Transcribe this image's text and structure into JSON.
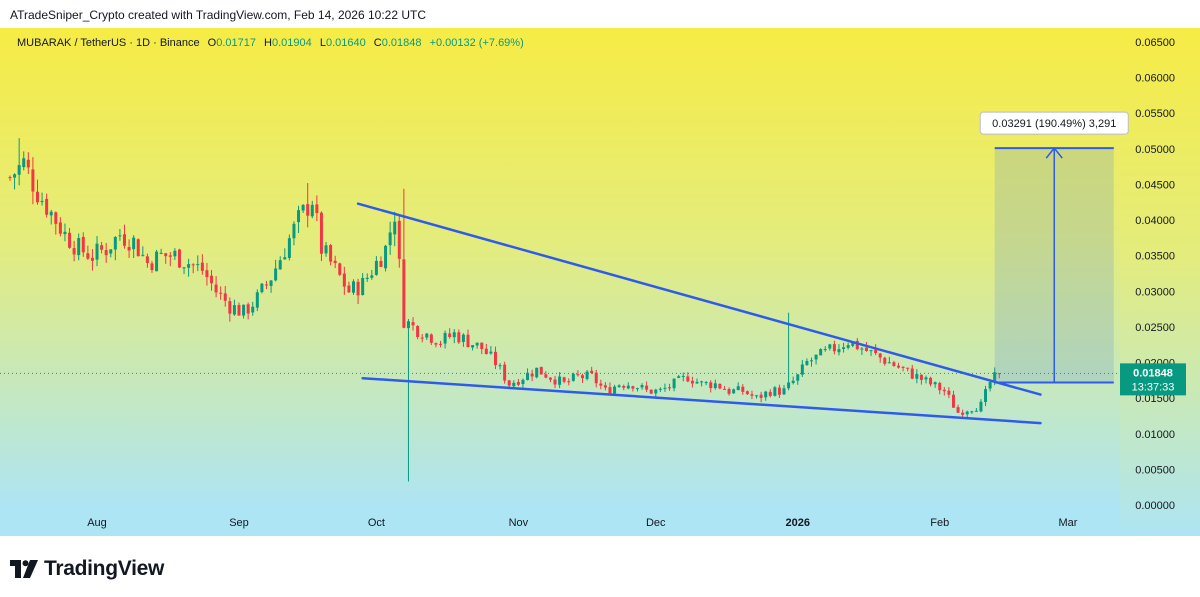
{
  "credit": "ATradeSniper_Crypto created with TradingView.com, Feb 14, 2026 10:22 UTC",
  "legend": {
    "symbol": "MUBARAK / TetherUS · 1D · Binance",
    "open_label": "O",
    "open": "0.01717",
    "high_label": "H",
    "high": "0.01904",
    "low_label": "L",
    "low": "0.01640",
    "close_label": "C",
    "close": "0.01848",
    "change": "+0.00132 (+7.69%)"
  },
  "colors": {
    "up": "#089981",
    "down": "#f23645",
    "pattern": "#2f5bea",
    "bg_top": "#f7ec45",
    "bg_bottom": "#aee5f4",
    "price_tag": "#089981"
  },
  "footer": {
    "brand": "TradingView",
    "logo_icon": "tradingview-logo-icon"
  },
  "chart_data": {
    "type": "candlestick",
    "title": "MUBARAK / TetherUS · 1D · Binance",
    "ylim": [
      0,
      0.066
    ],
    "y_ticks": [
      "0.00000",
      "0.00500",
      "0.01000",
      "0.01500",
      "0.02000",
      "0.02500",
      "0.03000",
      "0.03500",
      "0.04000",
      "0.04500",
      "0.05000",
      "0.05500",
      "0.06000",
      "0.06500"
    ],
    "y_tick_values": [
      0,
      0.005,
      0.01,
      0.015,
      0.02,
      0.025,
      0.03,
      0.035,
      0.04,
      0.045,
      0.05,
      0.055,
      0.06,
      0.065
    ],
    "x_labels": [
      {
        "label": "Aug",
        "day": 19
      },
      {
        "label": "Sep",
        "day": 50
      },
      {
        "label": "Oct",
        "day": 80
      },
      {
        "label": "Nov",
        "day": 111
      },
      {
        "label": "Dec",
        "day": 141
      },
      {
        "label": "2026",
        "day": 172,
        "bold": true
      },
      {
        "label": "Feb",
        "day": 203
      },
      {
        "label": "Mar",
        "day": 231
      }
    ],
    "x_day_range": [
      0,
      272
    ],
    "last_day": 216,
    "current_price": 0.01848,
    "current_price_label": "0.01848",
    "countdown": "13:37:33",
    "close_anchors": [
      [
        0,
        0.046
      ],
      [
        3,
        0.048
      ],
      [
        6,
        0.044
      ],
      [
        9,
        0.041
      ],
      [
        12,
        0.038
      ],
      [
        15,
        0.036
      ],
      [
        18,
        0.035
      ],
      [
        21,
        0.036
      ],
      [
        24,
        0.038
      ],
      [
        27,
        0.037
      ],
      [
        30,
        0.034
      ],
      [
        33,
        0.035
      ],
      [
        36,
        0.035
      ],
      [
        39,
        0.034
      ],
      [
        42,
        0.033
      ],
      [
        45,
        0.03
      ],
      [
        48,
        0.028
      ],
      [
        51,
        0.027
      ],
      [
        54,
        0.029
      ],
      [
        57,
        0.032
      ],
      [
        60,
        0.036
      ],
      [
        63,
        0.04
      ],
      [
        66,
        0.043
      ],
      [
        68,
        0.036
      ],
      [
        71,
        0.033
      ],
      [
        74,
        0.03
      ],
      [
        77,
        0.031
      ],
      [
        80,
        0.034
      ],
      [
        82,
        0.036
      ],
      [
        84,
        0.041
      ],
      [
        86,
        0.026
      ],
      [
        88,
        0.025
      ],
      [
        91,
        0.024
      ],
      [
        94,
        0.023
      ],
      [
        97,
        0.024
      ],
      [
        100,
        0.023
      ],
      [
        103,
        0.022
      ],
      [
        106,
        0.02
      ],
      [
        109,
        0.017
      ],
      [
        112,
        0.018
      ],
      [
        115,
        0.019
      ],
      [
        118,
        0.018
      ],
      [
        121,
        0.017
      ],
      [
        124,
        0.018
      ],
      [
        127,
        0.018
      ],
      [
        130,
        0.016
      ],
      [
        133,
        0.017
      ],
      [
        136,
        0.017
      ],
      [
        139,
        0.016
      ],
      [
        142,
        0.016
      ],
      [
        145,
        0.017
      ],
      [
        148,
        0.018
      ],
      [
        151,
        0.017
      ],
      [
        154,
        0.017
      ],
      [
        157,
        0.016
      ],
      [
        160,
        0.016
      ],
      [
        163,
        0.015
      ],
      [
        166,
        0.016
      ],
      [
        169,
        0.016
      ],
      [
        172,
        0.018
      ],
      [
        174,
        0.02
      ],
      [
        177,
        0.021
      ],
      [
        180,
        0.022
      ],
      [
        183,
        0.023
      ],
      [
        186,
        0.022
      ],
      [
        189,
        0.021
      ],
      [
        192,
        0.02
      ],
      [
        195,
        0.019
      ],
      [
        198,
        0.018
      ],
      [
        201,
        0.017
      ],
      [
        204,
        0.016
      ],
      [
        207,
        0.013
      ],
      [
        209,
        0.0135
      ],
      [
        212,
        0.014
      ],
      [
        214,
        0.0172
      ],
      [
        216,
        0.01848
      ]
    ],
    "spikes": [
      {
        "day": 86,
        "high": 0.0444
      },
      {
        "day": 87,
        "low": 0.0033
      },
      {
        "day": 170,
        "high": 0.027
      },
      {
        "day": 65,
        "high": 0.0452
      },
      {
        "day": 2,
        "high": 0.0515
      }
    ],
    "trendlines": [
      {
        "name": "upper-resistance",
        "from": [
          76,
          0.0423
        ],
        "to": [
          225,
          0.0155
        ]
      },
      {
        "name": "lower-support",
        "from": [
          77,
          0.0178
        ],
        "to": [
          225,
          0.0115
        ]
      }
    ],
    "projection": {
      "label": "0.03291 (190.49%) 3,291",
      "from_day": 215,
      "to_day": 241,
      "base": 0.0172,
      "target": 0.0501
    }
  }
}
